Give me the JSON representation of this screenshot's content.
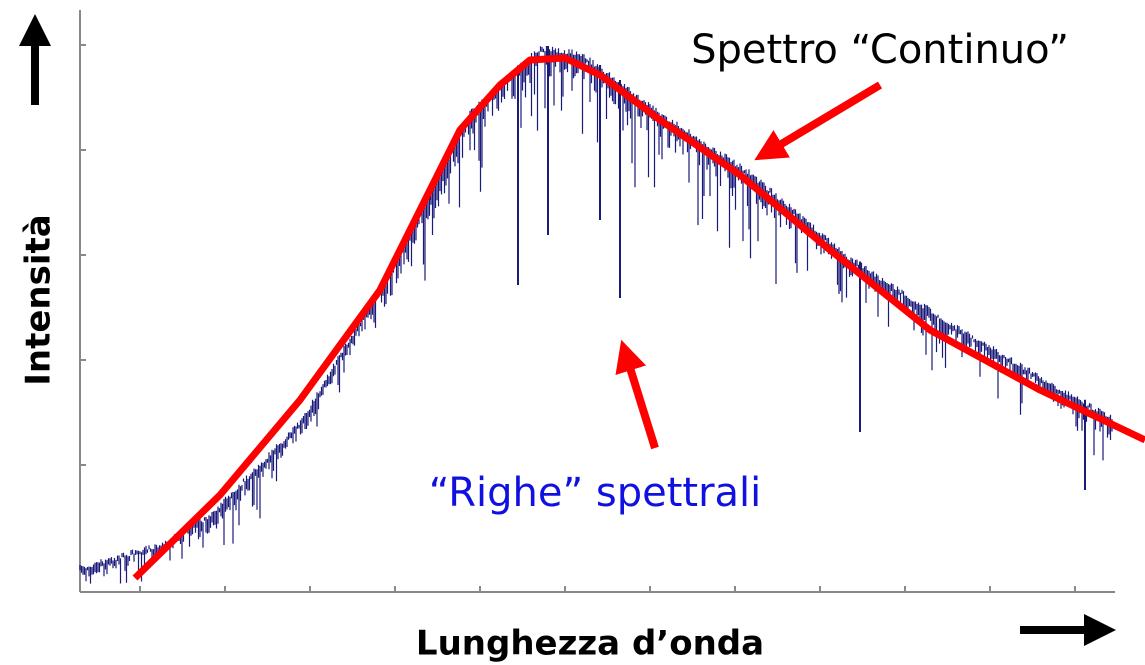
{
  "labels": {
    "y_axis": "Intensità",
    "x_axis": "Lunghezza d’onda",
    "continuum": "Spettro “Continuo”",
    "lines": "“Righe” spettrali"
  }
}
